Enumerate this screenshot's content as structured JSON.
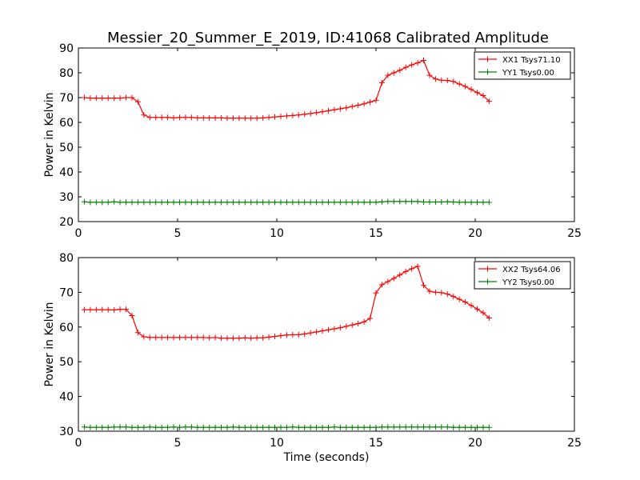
{
  "title": "Messier_20_Summer_E_2019, ID:41068 Calibrated Amplitude",
  "chart_data": [
    {
      "type": "line",
      "ylabel": "Power in Kelvin",
      "xlabel": "",
      "xlim": [
        0,
        25
      ],
      "ylim": [
        20,
        90
      ],
      "xticks": [
        0,
        5,
        10,
        15,
        20,
        25
      ],
      "yticks": [
        20,
        30,
        40,
        50,
        60,
        70,
        80,
        90
      ],
      "legend": "top-right",
      "series": [
        {
          "name": "XX1 Tsys71.10",
          "color": "#ff0000",
          "x": [
            0.3,
            0.6,
            0.9,
            1.2,
            1.5,
            1.8,
            2.1,
            2.4,
            2.7,
            3.0,
            3.3,
            3.6,
            3.9,
            4.2,
            4.5,
            4.8,
            5.1,
            5.4,
            5.7,
            6.0,
            6.3,
            6.6,
            6.9,
            7.2,
            7.5,
            7.8,
            8.1,
            8.4,
            8.7,
            9.0,
            9.3,
            9.6,
            9.9,
            10.2,
            10.5,
            10.8,
            11.1,
            11.4,
            11.7,
            12.0,
            12.3,
            12.6,
            12.9,
            13.2,
            13.5,
            13.8,
            14.1,
            14.4,
            14.7,
            15.0,
            15.3,
            15.6,
            15.9,
            16.2,
            16.5,
            16.8,
            17.1,
            17.4,
            17.7,
            18.0,
            18.3,
            18.6,
            18.9,
            19.2,
            19.5,
            19.8,
            20.1,
            20.4,
            20.7
          ],
          "y": [
            70,
            69.8,
            69.8,
            69.8,
            69.8,
            69.8,
            69.8,
            70,
            70,
            68.3,
            63,
            62,
            62,
            62,
            62,
            61.8,
            62,
            62,
            62,
            61.8,
            61.8,
            61.8,
            61.8,
            61.8,
            61.7,
            61.7,
            61.7,
            61.7,
            61.7,
            61.7,
            61.8,
            62,
            62.2,
            62.4,
            62.6,
            62.8,
            63,
            63.3,
            63.6,
            63.9,
            64.3,
            64.7,
            65.1,
            65.5,
            65.9,
            66.4,
            66.9,
            67.5,
            68.2,
            68.9,
            76,
            79,
            80,
            81,
            82.2,
            83.2,
            84,
            85,
            79,
            77.5,
            77,
            76.9,
            76.5,
            75.5,
            74.5,
            73.3,
            72,
            70.8,
            68.5
          ]
        },
        {
          "name": "YY1 Tsys0.00",
          "color": "#008000",
          "x": [
            0.3,
            0.6,
            0.9,
            1.2,
            1.5,
            1.8,
            2.1,
            2.4,
            2.7,
            3.0,
            3.3,
            3.6,
            3.9,
            4.2,
            4.5,
            4.8,
            5.1,
            5.4,
            5.7,
            6.0,
            6.3,
            6.6,
            6.9,
            7.2,
            7.5,
            7.8,
            8.1,
            8.4,
            8.7,
            9.0,
            9.3,
            9.6,
            9.9,
            10.2,
            10.5,
            10.8,
            11.1,
            11.4,
            11.7,
            12.0,
            12.3,
            12.6,
            12.9,
            13.2,
            13.5,
            13.8,
            14.1,
            14.4,
            14.7,
            15.0,
            15.3,
            15.6,
            15.9,
            16.2,
            16.5,
            16.8,
            17.1,
            17.4,
            17.7,
            18.0,
            18.3,
            18.6,
            18.9,
            19.2,
            19.5,
            19.8,
            20.1,
            20.4,
            20.7
          ],
          "y": [
            28,
            27.8,
            27.8,
            27.8,
            27.8,
            28,
            27.8,
            27.8,
            27.8,
            27.8,
            27.8,
            27.8,
            27.8,
            27.8,
            27.8,
            27.8,
            27.8,
            27.8,
            27.8,
            27.8,
            27.8,
            27.8,
            27.8,
            27.8,
            27.8,
            27.8,
            27.8,
            27.8,
            27.8,
            27.8,
            27.8,
            27.8,
            27.8,
            27.8,
            27.8,
            27.8,
            27.8,
            27.8,
            27.8,
            27.8,
            27.8,
            27.8,
            27.8,
            27.8,
            27.8,
            27.8,
            27.8,
            27.8,
            27.8,
            27.8,
            28,
            28.1,
            28.1,
            28.1,
            28.1,
            28.1,
            28.1,
            27.9,
            27.9,
            27.9,
            27.9,
            28,
            27.9,
            27.8,
            27.8,
            27.8,
            27.8,
            27.8,
            27.8
          ]
        }
      ]
    },
    {
      "type": "line",
      "ylabel": "Power in Kelvin",
      "xlabel": "Time (seconds)",
      "xlim": [
        0,
        25
      ],
      "ylim": [
        30,
        80
      ],
      "xticks": [
        0,
        5,
        10,
        15,
        20,
        25
      ],
      "yticks": [
        30,
        40,
        50,
        60,
        70,
        80
      ],
      "legend": "top-right",
      "series": [
        {
          "name": "XX2 Tsys64.06",
          "color": "#ff0000",
          "x": [
            0.3,
            0.6,
            0.9,
            1.2,
            1.5,
            1.8,
            2.1,
            2.4,
            2.7,
            3.0,
            3.3,
            3.6,
            3.9,
            4.2,
            4.5,
            4.8,
            5.1,
            5.4,
            5.7,
            6.0,
            6.3,
            6.6,
            6.9,
            7.2,
            7.5,
            7.8,
            8.1,
            8.4,
            8.7,
            9.0,
            9.3,
            9.6,
            9.9,
            10.2,
            10.5,
            10.8,
            11.1,
            11.4,
            11.7,
            12.0,
            12.3,
            12.6,
            12.9,
            13.2,
            13.5,
            13.8,
            14.1,
            14.4,
            14.7,
            15.0,
            15.3,
            15.6,
            15.9,
            16.2,
            16.5,
            16.8,
            17.1,
            17.4,
            17.7,
            18.0,
            18.3,
            18.6,
            18.9,
            19.2,
            19.5,
            19.8,
            20.1,
            20.4,
            20.7
          ],
          "y": [
            65,
            65,
            65,
            65,
            65,
            64.9,
            65.1,
            65.1,
            63.3,
            58.4,
            57.2,
            57,
            57,
            57,
            57,
            57,
            57,
            57,
            57,
            57,
            57,
            56.9,
            57,
            56.8,
            56.8,
            56.8,
            56.8,
            56.9,
            56.8,
            56.9,
            56.9,
            57.1,
            57.3,
            57.5,
            57.7,
            57.8,
            57.8,
            58,
            58.3,
            58.6,
            58.9,
            59.2,
            59.5,
            59.8,
            60.2,
            60.6,
            61,
            61.5,
            62.5,
            69.8,
            72.2,
            73.1,
            74,
            75,
            76,
            76.8,
            77.5,
            72,
            70.3,
            70,
            69.9,
            69.5,
            68.8,
            68,
            67.2,
            66.2,
            65.2,
            64.1,
            62.6
          ]
        },
        {
          "name": "YY2 Tsys0.00",
          "color": "#008000",
          "x": [
            0.3,
            0.6,
            0.9,
            1.2,
            1.5,
            1.8,
            2.1,
            2.4,
            2.7,
            3.0,
            3.3,
            3.6,
            3.9,
            4.2,
            4.5,
            4.8,
            5.1,
            5.4,
            5.7,
            6.0,
            6.3,
            6.6,
            6.9,
            7.2,
            7.5,
            7.8,
            8.1,
            8.4,
            8.7,
            9.0,
            9.3,
            9.6,
            9.9,
            10.2,
            10.5,
            10.8,
            11.1,
            11.4,
            11.7,
            12.0,
            12.3,
            12.6,
            12.9,
            13.2,
            13.5,
            13.8,
            14.1,
            14.4,
            14.7,
            15.0,
            15.3,
            15.6,
            15.9,
            16.2,
            16.5,
            16.8,
            17.1,
            17.4,
            17.7,
            18.0,
            18.3,
            18.6,
            18.9,
            19.2,
            19.5,
            19.8,
            20.1,
            20.4,
            20.7
          ],
          "y": [
            31.2,
            31.1,
            31.1,
            31.1,
            31.1,
            31.2,
            31.2,
            31.2,
            31.1,
            31.1,
            31.1,
            31.2,
            31.1,
            31.1,
            31.1,
            31.2,
            31.1,
            31.2,
            31.2,
            31.1,
            31.1,
            31.1,
            31.1,
            31.1,
            31.1,
            31.2,
            31.1,
            31.1,
            31.1,
            31.1,
            31.1,
            31.1,
            31.1,
            31.1,
            31.1,
            31.2,
            31.1,
            31.1,
            31.1,
            31.1,
            31.1,
            31.1,
            31.2,
            31.1,
            31.1,
            31.1,
            31.1,
            31.1,
            31.1,
            31.1,
            31.2,
            31.2,
            31.2,
            31.2,
            31.2,
            31.2,
            31.2,
            31.2,
            31.2,
            31.2,
            31.2,
            31.2,
            31.1,
            31.1,
            31.1,
            31.1,
            31.1,
            31.1,
            31.1
          ]
        }
      ]
    }
  ]
}
